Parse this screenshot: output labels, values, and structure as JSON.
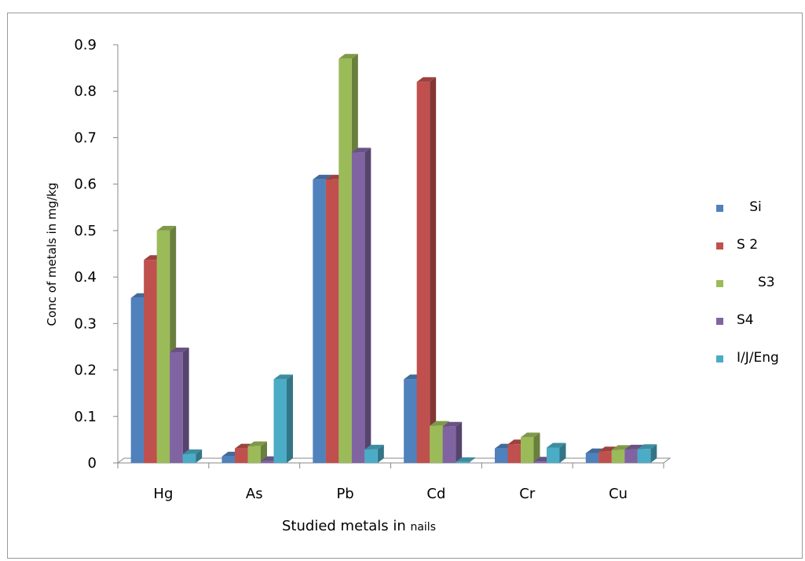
{
  "chart_data": {
    "type": "bar",
    "three_d": true,
    "title": "",
    "xlabel_main": "Studied metals in ",
    "xlabel_suffix": "nails",
    "ylabel": "Conc of metals in mg/kg",
    "ylim": [
      0,
      0.9
    ],
    "yticks": [
      "0",
      "0.1",
      "0.2",
      "0.3",
      "0.4",
      "0.5",
      "0.6",
      "0.7",
      "0.8",
      "0.9"
    ],
    "grid": false,
    "legend_position": "right",
    "categories": [
      "Hg",
      "As",
      "Pb",
      "Cd",
      "Cr",
      "Cu"
    ],
    "series": [
      {
        "name": "   Si",
        "color": "#4f81bd",
        "values": [
          0.355,
          0.014,
          0.61,
          0.18,
          0.031,
          0.021
        ]
      },
      {
        "name": "S 2",
        "color": "#c0504d",
        "values": [
          0.437,
          0.031,
          0.61,
          0.82,
          0.04,
          0.025
        ]
      },
      {
        "name": "     S3",
        "color": "#9bbb59",
        "values": [
          0.5,
          0.036,
          0.87,
          0.08,
          0.055,
          0.028
        ]
      },
      {
        "name": "S4",
        "color": "#8064a2",
        "values": [
          0.238,
          0.004,
          0.668,
          0.078,
          0.003,
          0.029
        ]
      },
      {
        "name": "I/J/Eng",
        "color": "#4bacc6",
        "values": [
          0.019,
          0.18,
          0.029,
          0.002,
          0.033,
          0.03
        ]
      }
    ]
  }
}
